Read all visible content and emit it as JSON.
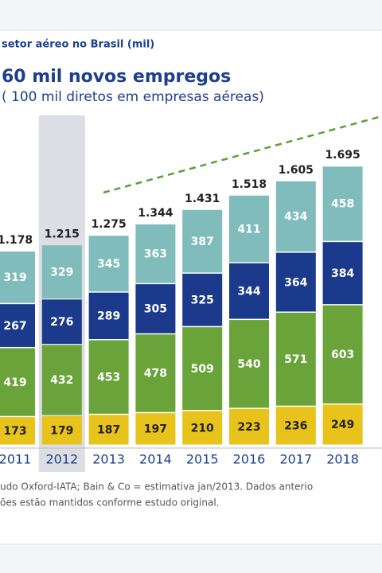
{
  "chart_data": {
    "type": "stacked_bar",
    "subtitle_top": "setor aéreo no Brasil (mil)",
    "title": "60 mil novos empregos",
    "subtitle": "( 100 mil diretos em empresas aéreas)",
    "categories": [
      "2011",
      "2012",
      "2013",
      "2014",
      "2015",
      "2016",
      "2017",
      "2018"
    ],
    "highlight": "2012",
    "series": [
      {
        "color": "#e8c31c",
        "values": [
          173,
          179,
          187,
          197,
          210,
          223,
          236,
          249
        ]
      },
      {
        "color": "#6aa33a",
        "values": [
          419,
          432,
          453,
          478,
          509,
          540,
          571,
          603
        ]
      },
      {
        "color": "#1c3a8c",
        "values": [
          267,
          276,
          289,
          305,
          325,
          344,
          364,
          384
        ]
      },
      {
        "color": "#7fbcbb",
        "values": [
          319,
          329,
          345,
          363,
          387,
          411,
          434,
          458
        ]
      }
    ],
    "totals": {
      "values": [
        1178,
        1215,
        1275,
        1344,
        1431,
        1518,
        1605,
        1695
      ],
      "value_labels": [
        "1.178",
        "1.215",
        "1.275",
        "1.344",
        "1.431",
        "1.518",
        "1.605",
        "1.695"
      ]
    },
    "footnote": [
      "udo Oxford-IATA; Bain & Co = estimativa jan/2013. Dados anterio",
      "ões estão mantidos conforme estudo original."
    ]
  }
}
